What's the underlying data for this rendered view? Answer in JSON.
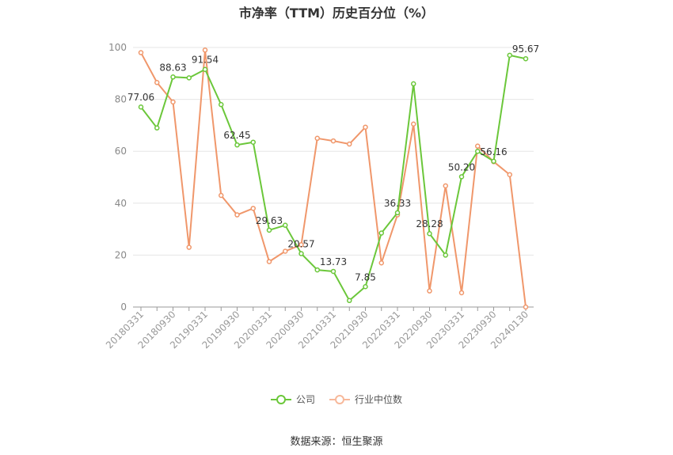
{
  "chart_data": {
    "type": "line",
    "title": "市净率（TTM）历史百分位（%）",
    "x": [
      "20180331",
      "20180630",
      "20180930",
      "20181231",
      "20190331",
      "20190630",
      "20190930",
      "20191231",
      "20200331",
      "20200630",
      "20200930",
      "20201231",
      "20210331",
      "20210630",
      "20210930",
      "20211231",
      "20220331",
      "20220630",
      "20220930",
      "20221231",
      "20230331",
      "20230630",
      "20230930",
      "20231231",
      "20240130"
    ],
    "x_tick_labels": [
      "20180331",
      "20180930",
      "20190331",
      "20190930",
      "20200331",
      "20200930",
      "20210331",
      "20210930",
      "20220331",
      "20220930",
      "20230331",
      "20230930",
      "20240130"
    ],
    "ylim": [
      0,
      100
    ],
    "y_ticks": [
      0,
      20,
      40,
      60,
      80,
      100
    ],
    "grid": true,
    "legend_position": "bottom",
    "series": [
      {
        "name": "公司",
        "color": "#6bc73a",
        "values": [
          77.06,
          69.0,
          88.63,
          88.3,
          91.54,
          78.0,
          62.45,
          63.5,
          29.63,
          31.5,
          20.57,
          14.3,
          13.73,
          2.5,
          7.85,
          28.5,
          36.33,
          86.0,
          28.28,
          20.0,
          50.2,
          60.0,
          56.16,
          97.0,
          95.67
        ]
      },
      {
        "name": "行业中位数",
        "color": "#f0976b",
        "values": [
          98.0,
          86.5,
          79.0,
          23.0,
          99.0,
          43.0,
          35.5,
          38.0,
          17.5,
          21.5,
          24.0,
          65.0,
          64.0,
          62.8,
          69.3,
          17.0,
          35.5,
          70.5,
          6.2,
          46.7,
          5.5,
          62.0,
          56.0,
          51.0,
          0.0
        ]
      }
    ],
    "annotations": [
      {
        "series": 0,
        "index": 0,
        "label": "77.06"
      },
      {
        "series": 0,
        "index": 2,
        "label": "88.63"
      },
      {
        "series": 0,
        "index": 4,
        "label": "91.54"
      },
      {
        "series": 0,
        "index": 6,
        "label": "62.45"
      },
      {
        "series": 0,
        "index": 8,
        "label": "29.63"
      },
      {
        "series": 0,
        "index": 10,
        "label": "20.57"
      },
      {
        "series": 0,
        "index": 12,
        "label": "13.73"
      },
      {
        "series": 0,
        "index": 14,
        "label": "7.85"
      },
      {
        "series": 0,
        "index": 16,
        "label": "36.33"
      },
      {
        "series": 0,
        "index": 18,
        "label": "28.28"
      },
      {
        "series": 0,
        "index": 20,
        "label": "50.20"
      },
      {
        "series": 0,
        "index": 22,
        "label": "56.16"
      },
      {
        "series": 0,
        "index": 24,
        "label": "95.67"
      }
    ]
  },
  "legend": {
    "series_a": "公司",
    "series_b": "行业中位数"
  },
  "source": "数据来源：恒生聚源"
}
